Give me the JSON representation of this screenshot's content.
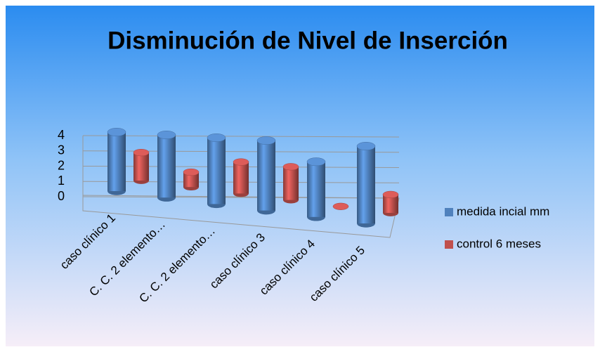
{
  "chart_data": {
    "type": "bar",
    "title": "Disminución de Nivel de Inserción",
    "categories": [
      "caso clínico 1",
      "C. C. 2 elemento…",
      "C. C. 2 elemento…",
      "caso clínico 3",
      "caso clínico 4",
      "caso clínico 5"
    ],
    "series": [
      {
        "name": "medida incial mm",
        "color": "#4f81bd",
        "values": [
          4,
          4,
          4,
          4,
          3,
          4
        ]
      },
      {
        "name": "control 6 meses",
        "color": "#c0504d",
        "values": [
          2,
          1,
          2,
          2,
          0,
          1
        ]
      }
    ],
    "ylim": [
      0,
      4
    ],
    "yticks": [
      0,
      1,
      2,
      3,
      4
    ],
    "grid": true,
    "legend": "right"
  }
}
